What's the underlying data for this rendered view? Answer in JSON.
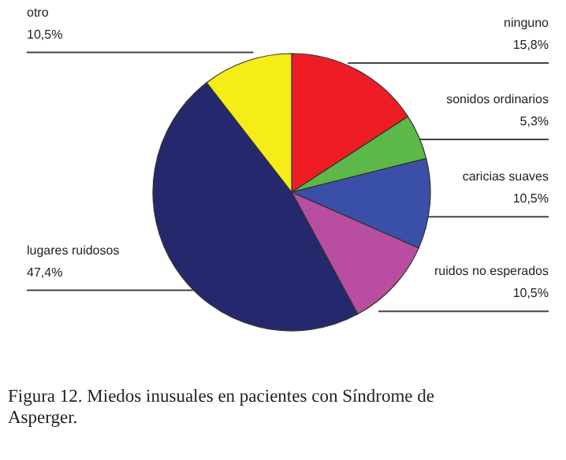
{
  "chart_data": {
    "type": "pie",
    "title": "Figura 12. Miedos inusuales en pacientes con Síndrome de Asperger.",
    "categories": [
      "ninguno",
      "sonidos ordinarios",
      "caricias suaves",
      "ruidos no esperados",
      "lugares ruidosos",
      "otro"
    ],
    "values": [
      15.8,
      5.3,
      10.5,
      10.5,
      47.4,
      10.5
    ],
    "value_labels": [
      "15,8%",
      "5,3%",
      "10,5%",
      "10,5%",
      "47,4%",
      "10,5%"
    ],
    "colors": [
      "#ee1c24",
      "#5cb848",
      "#3a50a8",
      "#b94ea0",
      "#26286e",
      "#f5ec18"
    ]
  }
}
